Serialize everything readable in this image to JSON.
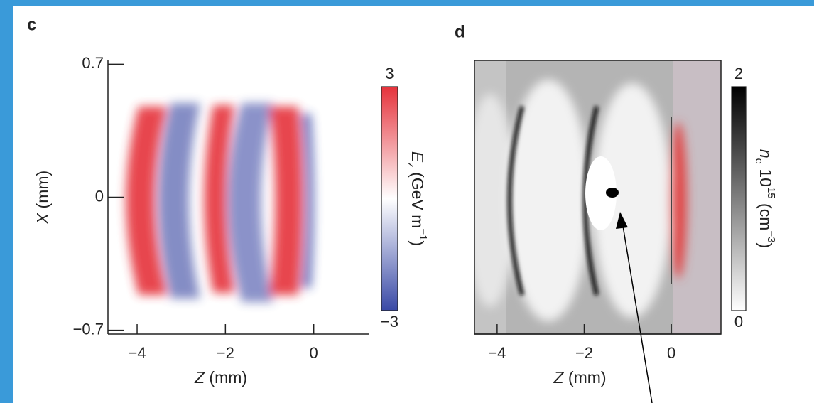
{
  "chart_data": [
    {
      "type": "heatmap",
      "panel_label": "c",
      "xlabel_parts": [
        {
          "text": "Z",
          "style": "italic"
        },
        {
          "text": " (mm)",
          "style": "normal"
        }
      ],
      "ylabel_parts": [
        {
          "text": "X",
          "style": "italic"
        },
        {
          "text": " (mm)",
          "style": "normal"
        }
      ],
      "xlim": [
        -4.66,
        1.26
      ],
      "ylim": [
        -0.72,
        0.72
      ],
      "xticks": [
        {
          "value": -4,
          "label": "−4"
        },
        {
          "value": -2,
          "label": "−2"
        },
        0
      ],
      "yticks": [
        {
          "value": -0.7,
          "label": "−0.7"
        },
        0,
        0.7
      ],
      "frame": false,
      "colorbar": {
        "clim": [
          -3,
          3
        ],
        "ticks": [
          {
            "value": -3,
            "label": "−3"
          },
          3
        ],
        "colors": [
          "#3949a6",
          "#ffffff",
          "#e5323b"
        ],
        "label_parts": [
          {
            "text": "E",
            "style": "italic"
          },
          {
            "text": "z",
            "style": "sub"
          },
          {
            "text": " (GeV m",
            "style": "normal"
          },
          {
            "text": "−1",
            "style": "sup"
          },
          {
            "text": ")",
            "style": "normal"
          }
        ]
      }
    },
    {
      "type": "heatmap",
      "panel_label": "d",
      "xlabel_parts": [
        {
          "text": "Z",
          "style": "italic"
        },
        {
          "text": " (mm)",
          "style": "normal"
        }
      ],
      "xlim": [
        -4.52,
        1.14
      ],
      "xticks": [
        {
          "value": -4,
          "label": "−4"
        },
        {
          "value": -2,
          "label": "−2"
        },
        0
      ],
      "frame": true,
      "colorbar": {
        "clim": [
          0,
          2
        ],
        "ticks": [
          0,
          2
        ],
        "colors": [
          "#ffffff",
          "#000000"
        ],
        "label_parts": [
          {
            "text": "n",
            "style": "italic"
          },
          {
            "text": "e",
            "style": "sub"
          },
          {
            "text": " 10",
            "style": "normal"
          },
          {
            "text": "15",
            "style": "sup"
          },
          {
            "text": " (cm",
            "style": "normal"
          },
          {
            "text": "−3",
            "style": "sup"
          },
          {
            "text": ")",
            "style": "normal"
          }
        ]
      }
    }
  ]
}
